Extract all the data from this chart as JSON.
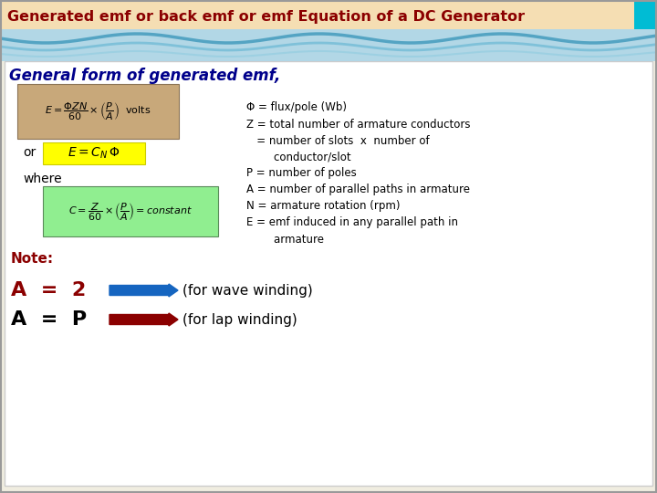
{
  "title": "Generated emf or back emf or emf Equation of a DC Generator",
  "title_bg": "#f5deb3",
  "title_color": "#8b0000",
  "subtitle": "General form of generated emf,",
  "subtitle_color": "#00008b",
  "slide_bg": "#f0ede0",
  "header_accent_color": "#00bcd4",
  "formula1_bg": "#c8a87a",
  "ecnphi_bg": "#ffff00",
  "formula2_bg": "#90ee90",
  "definitions": [
    "Φ = flux/pole (Wb)",
    "Z = total number of armature conductors",
    "   = number of slots  x  number of",
    "        conductor/slot",
    "P = number of poles",
    "A = number of parallel paths in armature",
    "N = armature rotation (rpm)",
    "E = emf induced in any parallel path in",
    "        armature"
  ],
  "note_text": "Note:",
  "note_color": "#8b0000",
  "a2_color": "#8b0000",
  "ap_color": "#000000",
  "arrow1_color": "#1565c0",
  "arrow2_color": "#8b0000",
  "wave_text1": "(for wave winding)",
  "wave_text2": "(for lap winding)"
}
